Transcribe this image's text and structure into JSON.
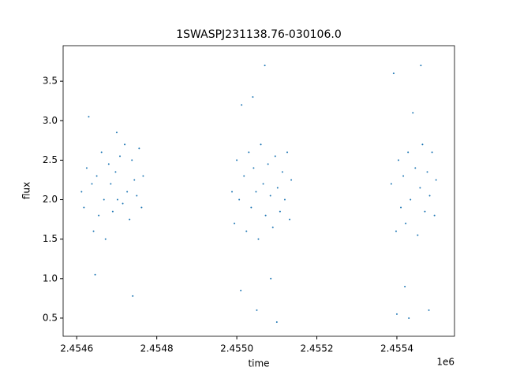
{
  "chart_data": {
    "type": "scatter",
    "title": "1SWASPJ231138.76-030106.0",
    "x_label": "time",
    "y_label": "flux",
    "x_offset_label": "1e6",
    "color": "#1f77b4",
    "grid": false,
    "xlim": [
      2454566,
      2455544
    ],
    "ylim": [
      0.27,
      3.95
    ],
    "xticks": [
      {
        "value": 2454600,
        "label": "2.4546"
      },
      {
        "value": 2454800,
        "label": "2.4548"
      },
      {
        "value": 2455000,
        "label": "2.4550"
      },
      {
        "value": 2455200,
        "label": "2.4552"
      },
      {
        "value": 2455400,
        "label": "2.4554"
      }
    ],
    "yticks": [
      0.5,
      {
        "value": 1,
        "label": "1.0"
      },
      1.5,
      {
        "value": 2,
        "label": "2.0"
      },
      2.5,
      {
        "value": 3,
        "label": "3.0"
      },
      3.5
    ],
    "x": [
      2454612,
      2454618,
      2454625,
      2454630,
      2454638,
      2454642,
      2454650,
      2454655,
      2454662,
      2454668,
      2454672,
      2454680,
      2454685,
      2454690,
      2454697,
      2454702,
      2454708,
      2454715,
      2454720,
      2454726,
      2454732,
      2454738,
      2454744,
      2454750,
      2454756,
      2454762,
      2454766,
      2454646,
      2454700,
      2454740,
      2454988,
      2454994,
      2455000,
      2455006,
      2455012,
      2455018,
      2455024,
      2455030,
      2455036,
      2455042,
      2455048,
      2455054,
      2455060,
      2455066,
      2455072,
      2455078,
      2455084,
      2455090,
      2455096,
      2455102,
      2455108,
      2455114,
      2455120,
      2455126,
      2455132,
      2455136,
      2455010,
      2455050,
      2455070,
      2455100,
      2455040,
      2455085,
      2455386,
      2455392,
      2455398,
      2455404,
      2455410,
      2455416,
      2455422,
      2455428,
      2455434,
      2455440,
      2455446,
      2455452,
      2455458,
      2455464,
      2455470,
      2455476,
      2455482,
      2455488,
      2455494,
      2455498,
      2455400,
      2455430,
      2455460,
      2455420,
      2455480
    ],
    "y": [
      2.1,
      1.9,
      2.4,
      3.05,
      2.2,
      1.6,
      2.3,
      1.8,
      2.6,
      2.0,
      1.5,
      2.45,
      2.2,
      1.85,
      2.35,
      2.0,
      2.55,
      1.95,
      2.7,
      2.1,
      1.75,
      2.5,
      2.25,
      2.05,
      2.65,
      1.9,
      2.3,
      1.05,
      2.85,
      0.78,
      2.1,
      1.7,
      2.5,
      2.0,
      3.2,
      2.3,
      1.6,
      2.6,
      1.9,
      2.4,
      2.1,
      1.5,
      2.7,
      2.2,
      1.8,
      2.45,
      2.05,
      1.65,
      2.55,
      2.15,
      1.85,
      2.35,
      2.0,
      2.6,
      1.75,
      2.25,
      0.85,
      0.6,
      3.7,
      0.45,
      3.3,
      1.0,
      2.2,
      3.6,
      1.6,
      2.5,
      1.9,
      2.3,
      1.7,
      2.6,
      2.0,
      3.1,
      2.4,
      1.55,
      2.15,
      2.7,
      1.85,
      2.35,
      2.05,
      2.6,
      1.8,
      2.25,
      0.55,
      0.5,
      3.7,
      0.9,
      0.6
    ]
  }
}
